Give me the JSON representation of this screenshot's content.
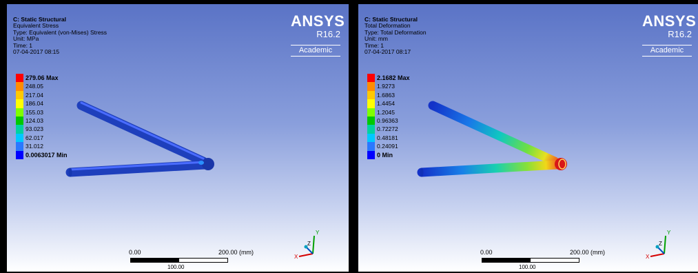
{
  "panels": [
    {
      "info": {
        "title": "C: Static Structural",
        "result": "Equivalent Stress",
        "type": "Type: Equivalent (von-Mises) Stress",
        "unit": "Unit: MPa",
        "time": "Time: 1",
        "datetime": "07-04-2017 08:15"
      },
      "brand": {
        "name": "ANSYS",
        "version": "R16.2",
        "edition": "Academic"
      },
      "legend": [
        "279.06 Max",
        "248.05",
        "217.04",
        "186.04",
        "155.03",
        "124.03",
        "93.023",
        "62.017",
        "31.012",
        "0.0063017 Min"
      ],
      "scale": {
        "left": "0.00",
        "right": "200.00 (mm)",
        "mid": "100.00"
      },
      "triad": {
        "x": "X",
        "y": "Y",
        "z": "Z"
      }
    },
    {
      "info": {
        "title": "C: Static Structural",
        "result": "Total Deformation",
        "type": "Type: Total Deformation",
        "unit": "Unit: mm",
        "time": "Time: 1",
        "datetime": "07-04-2017 08:17"
      },
      "brand": {
        "name": "ANSYS",
        "version": "R16.2",
        "edition": "Academic"
      },
      "legend": [
        "2.1682 Max",
        "1.9273",
        "1.6863",
        "1.4454",
        "1.2045",
        "0.96363",
        "0.72272",
        "0.48181",
        "0.24091",
        "0 Min"
      ],
      "scale": {
        "left": "0.00",
        "right": "200.00 (mm)",
        "mid": "100.00"
      },
      "triad": {
        "x": "X",
        "y": "Y",
        "z": "Z"
      }
    }
  ],
  "colors": {
    "legend_bands": [
      "#ff0000",
      "#ff8c00",
      "#ffc800",
      "#ffff00",
      "#7fff00",
      "#00c800",
      "#00d2a0",
      "#00c8ff",
      "#2a78ff",
      "#0000ff"
    ],
    "background_top": "#5a73c6",
    "background_bottom": "#ffffff"
  }
}
